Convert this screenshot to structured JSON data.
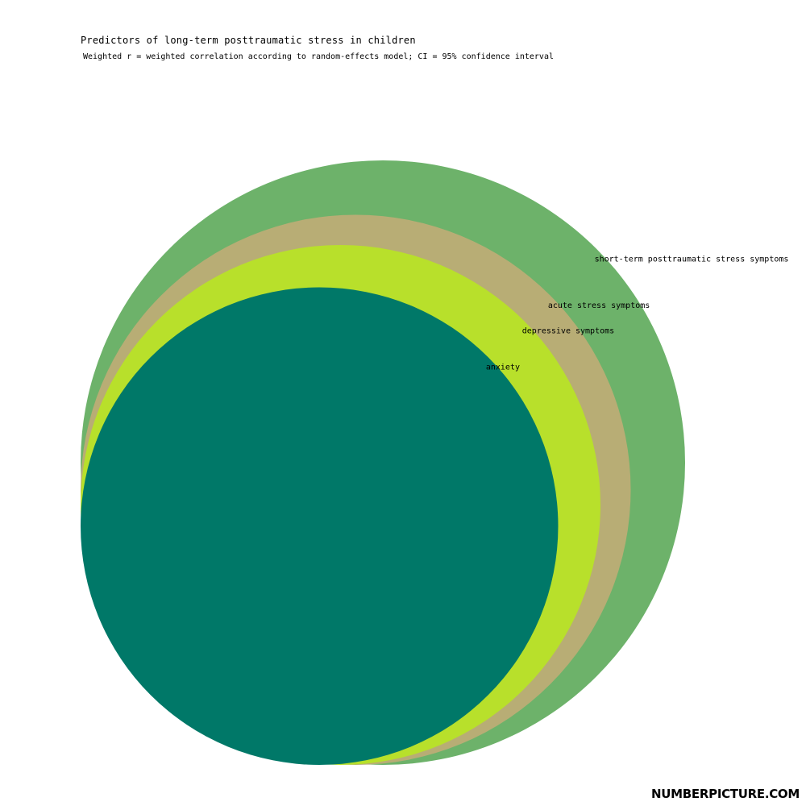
{
  "chart_data": {
    "type": "nested-circles",
    "title": "Predictors of long-term posttraumatic stress in children",
    "subtitle": "Weighted r = weighted correlation according to random-effects model; CI = 95% confidence interval",
    "series": [
      {
        "name": "short-term posttraumatic stress symptoms",
        "relative_size": 1.0,
        "color": "#6db26a"
      },
      {
        "name": "acute stress symptoms",
        "relative_size": 0.91,
        "color": "#b8ad75"
      },
      {
        "name": "depressive symptoms",
        "relative_size": 0.86,
        "color": "#b8e02b"
      },
      {
        "name": "anxiety",
        "relative_size": 0.79,
        "color": "#007868"
      }
    ]
  },
  "watermark": "NUMBERPICTURE.COM"
}
